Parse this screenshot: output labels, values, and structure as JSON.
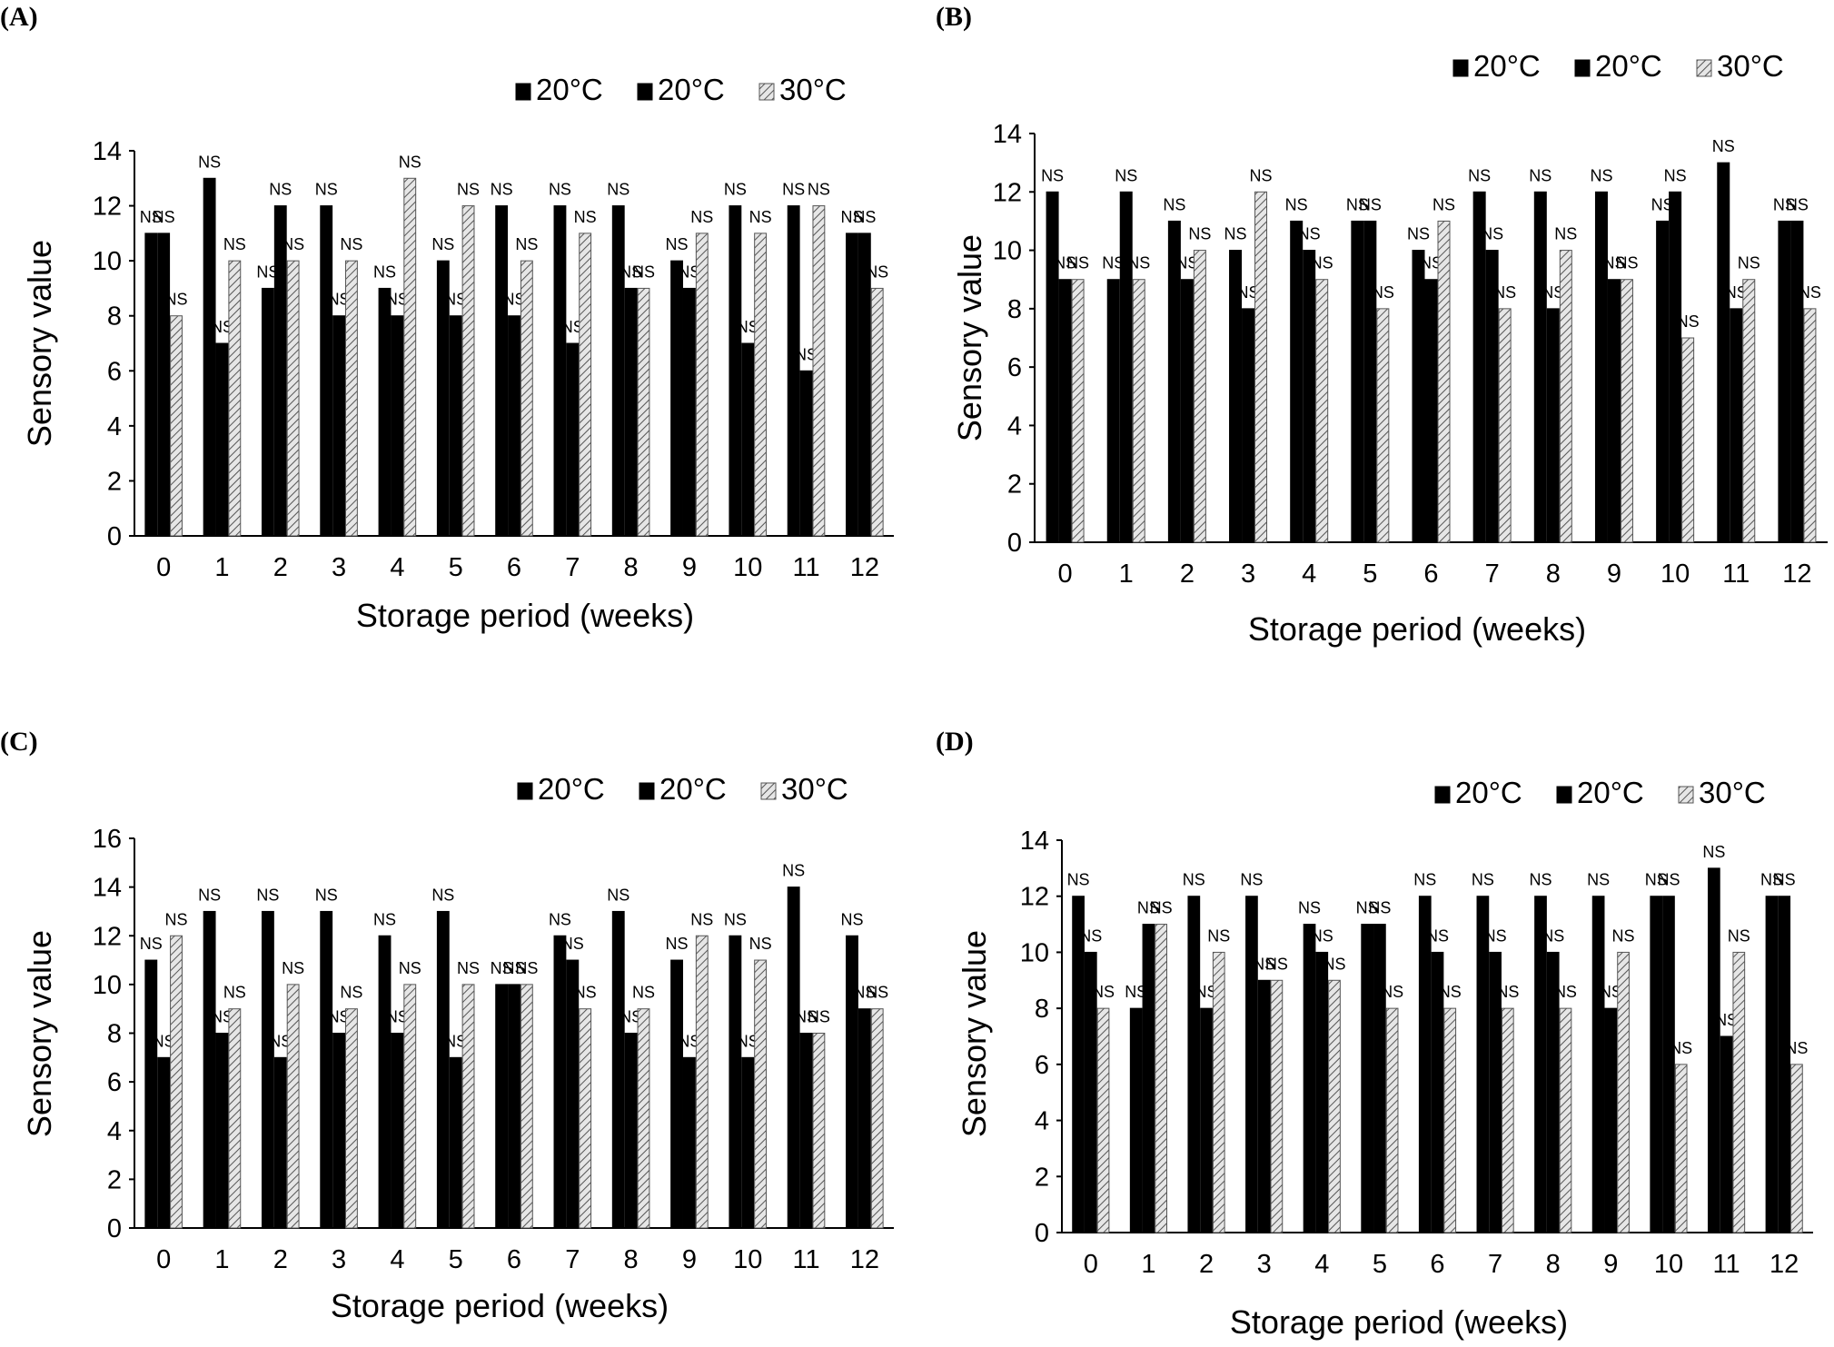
{
  "colors": {
    "bar_black": "#000000",
    "bar_hatch_stroke": "#555555",
    "bar_hatch_fill": "#e6e6e6",
    "axis": "#000000",
    "leader_line": "#aaaaaa"
  },
  "chart_data": [
    {
      "label": "(A)",
      "type": "bar",
      "xlabel": "Storage period (weeks)",
      "ylabel": "Sensory value",
      "ylim": [
        0,
        14
      ],
      "yticks": [
        0,
        2,
        4,
        6,
        8,
        10,
        12,
        14
      ],
      "categories": [
        "0",
        "1",
        "2",
        "3",
        "4",
        "5",
        "6",
        "7",
        "8",
        "9",
        "10",
        "11",
        "12"
      ],
      "legend_position": "top-right",
      "annotation": "NS",
      "series": [
        {
          "name": "20°C",
          "pattern": "solid",
          "values": [
            11,
            13,
            9,
            12,
            9,
            10,
            12,
            12,
            12,
            10,
            12,
            12,
            11
          ]
        },
        {
          "name": "20°C",
          "pattern": "solid",
          "values": [
            11,
            7,
            12,
            8,
            8,
            8,
            8,
            7,
            9,
            9,
            7,
            6,
            11
          ]
        },
        {
          "name": "30°C",
          "pattern": "hatched",
          "values": [
            8,
            10,
            10,
            10,
            13,
            12,
            10,
            11,
            9,
            11,
            11,
            12,
            9
          ]
        }
      ]
    },
    {
      "label": "(B)",
      "type": "bar",
      "xlabel": "Storage period (weeks)",
      "ylabel": "Sensory value",
      "ylim": [
        0,
        14
      ],
      "yticks": [
        0,
        2,
        4,
        6,
        8,
        10,
        12,
        14
      ],
      "categories": [
        "0",
        "1",
        "2",
        "3",
        "4",
        "5",
        "6",
        "7",
        "8",
        "9",
        "10",
        "11",
        "12"
      ],
      "legend_position": "top-right",
      "annotation": "NS",
      "series": [
        {
          "name": "20°C",
          "pattern": "solid",
          "values": [
            12,
            9,
            11,
            10,
            11,
            11,
            10,
            12,
            12,
            12,
            11,
            13,
            11
          ]
        },
        {
          "name": "20°C",
          "pattern": "solid",
          "values": [
            9,
            12,
            9,
            8,
            10,
            11,
            9,
            10,
            8,
            9,
            12,
            8,
            11
          ]
        },
        {
          "name": "30°C",
          "pattern": "hatched",
          "values": [
            9,
            9,
            10,
            12,
            9,
            8,
            11,
            8,
            10,
            9,
            7,
            9,
            8
          ]
        }
      ]
    },
    {
      "label": "(C)",
      "type": "bar",
      "xlabel": "Storage period (weeks)",
      "ylabel": "Sensory value",
      "ylim": [
        0,
        16
      ],
      "yticks": [
        0,
        2,
        4,
        6,
        8,
        10,
        12,
        14,
        16
      ],
      "categories": [
        "0",
        "1",
        "2",
        "3",
        "4",
        "5",
        "6",
        "7",
        "8",
        "9",
        "10",
        "11",
        "12"
      ],
      "legend_position": "top-right",
      "annotation": "NS",
      "series": [
        {
          "name": "20°C",
          "pattern": "solid",
          "values": [
            11,
            13,
            13,
            13,
            12,
            13,
            10,
            12,
            13,
            11,
            12,
            14,
            12
          ]
        },
        {
          "name": "20°C",
          "pattern": "solid",
          "values": [
            7,
            8,
            7,
            8,
            8,
            7,
            10,
            11,
            8,
            7,
            7,
            8,
            9
          ]
        },
        {
          "name": "30°C",
          "pattern": "hatched",
          "values": [
            12,
            9,
            10,
            9,
            10,
            10,
            10,
            9,
            9,
            12,
            11,
            8,
            9
          ]
        }
      ]
    },
    {
      "label": "(D)",
      "type": "bar",
      "xlabel": "Storage period (weeks)",
      "ylabel": "Sensory value",
      "ylim": [
        0,
        14
      ],
      "yticks": [
        0,
        2,
        4,
        6,
        8,
        10,
        12,
        14
      ],
      "categories": [
        "0",
        "1",
        "2",
        "3",
        "4",
        "5",
        "6",
        "7",
        "8",
        "9",
        "10",
        "11",
        "12"
      ],
      "legend_position": "top-right",
      "annotation": "NS",
      "series": [
        {
          "name": "20°C",
          "pattern": "solid",
          "values": [
            12,
            8,
            12,
            12,
            11,
            11,
            12,
            12,
            12,
            12,
            12,
            13,
            12
          ]
        },
        {
          "name": "20°C",
          "pattern": "solid",
          "values": [
            10,
            11,
            8,
            9,
            10,
            11,
            10,
            10,
            10,
            8,
            12,
            7,
            12
          ]
        },
        {
          "name": "30°C",
          "pattern": "hatched",
          "values": [
            8,
            11,
            10,
            9,
            9,
            8,
            8,
            8,
            8,
            10,
            6,
            10,
            6
          ]
        }
      ]
    }
  ]
}
